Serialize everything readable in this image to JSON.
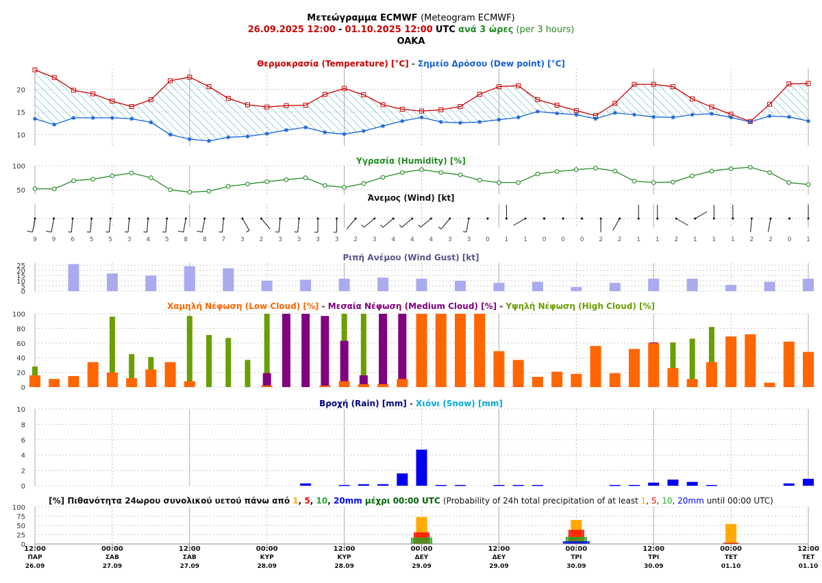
{
  "header": {
    "title_bold": "Μετεώγραμμα ECMWF",
    "title_normal": "(Meteogram ECMWF)",
    "period_from": "26.09.2025 12:00",
    "period_sep": "-",
    "period_to": "01.10.2025 12:00",
    "utc": "UTC",
    "step_bold": "ανά 3 ώρες",
    "step_normal": "(per 3 hours)",
    "station": "OAKA"
  },
  "colors": {
    "temperature": "#cc0000",
    "dew_point": "#1560d6",
    "humidity": "#228b22",
    "gust": "#aaaaee",
    "low_cloud": "#ff6600",
    "medium_cloud": "#800080",
    "high_cloud": "#6b9e00",
    "rain": "#0000ee",
    "snow": "#00aadd",
    "p1": "#ffaa00",
    "p5": "#ff0000",
    "p10": "#22aa22",
    "p20": "#0000ff"
  },
  "chart_data": [
    {
      "type": "line",
      "title_parts": [
        "Θερμοκρασία (Temperature) [°C]",
        " - ",
        "Σημείο Δρόσου (Dew point) [°C]"
      ],
      "series": [
        {
          "name": "Θερμοκρασία (Temperature) [°C]",
          "values": [
            24.3,
            22.6,
            19.8,
            19.0,
            17.4,
            16.2,
            17.7,
            21.9,
            22.7,
            20.6,
            18.0,
            16.6,
            16.1,
            16.4,
            16.5,
            18.9,
            20.2,
            18.8,
            16.6,
            15.6,
            15.2,
            15.5,
            16.2,
            18.9,
            20.6,
            20.8,
            17.7,
            16.5,
            15.3,
            14.2,
            16.9,
            21.1,
            21.1,
            20.6,
            17.9,
            16.1,
            14.5,
            12.9,
            16.7,
            21.2,
            21.3
          ]
        },
        {
          "name": "Σημείο Δρόσου (Dew point) [°C]",
          "values": [
            13.5,
            12.2,
            13.7,
            13.7,
            13.7,
            13.5,
            12.7,
            10.0,
            9.0,
            8.6,
            9.4,
            9.6,
            10.2,
            11.0,
            11.6,
            10.5,
            10.1,
            10.8,
            11.9,
            13.0,
            13.8,
            12.8,
            12.6,
            12.8,
            13.3,
            13.8,
            15.1,
            14.7,
            14.4,
            13.5,
            14.8,
            14.4,
            13.9,
            13.8,
            14.4,
            14.6,
            13.8,
            12.8,
            14.1,
            13.9,
            13.0
          ]
        }
      ],
      "yticks": [
        10,
        15,
        20
      ]
    },
    {
      "type": "line",
      "title": "Υγρασία (Humidity) [%]",
      "values": [
        52,
        52,
        69,
        72,
        79,
        85,
        75,
        50,
        45,
        47,
        57,
        62,
        67,
        71,
        75,
        59,
        55,
        63,
        76,
        86,
        92,
        86,
        81,
        70,
        65,
        65,
        83,
        88,
        92,
        95,
        89,
        68,
        65,
        66,
        79,
        89,
        94,
        97,
        86,
        65,
        61
      ],
      "yticks": [
        50,
        100
      ]
    },
    {
      "type": "table",
      "title": "Άνεμος (Wind) [kt]",
      "speeds": [
        9,
        9,
        6,
        5,
        5,
        3,
        4,
        5,
        8,
        8,
        7,
        3,
        2,
        3,
        3,
        3,
        3,
        2,
        3,
        4,
        4,
        4,
        3,
        3,
        0,
        1,
        1,
        0,
        0,
        0,
        2,
        2,
        1,
        1,
        2,
        1,
        1,
        1,
        2,
        2,
        0,
        1
      ],
      "directions_deg": [
        190,
        190,
        185,
        185,
        185,
        185,
        185,
        185,
        190,
        190,
        185,
        150,
        140,
        185,
        185,
        180,
        180,
        220,
        230,
        230,
        230,
        230,
        220,
        190,
        0,
        0,
        240,
        0,
        0,
        0,
        180,
        210,
        0,
        0,
        120,
        60,
        0,
        0,
        185,
        190,
        0,
        0
      ]
    },
    {
      "type": "bar",
      "title": "Ριπή Ανέμου (Wind Gust) [kt]",
      "categories_index": [
        2,
        4,
        6,
        8,
        10,
        12,
        14,
        16,
        18,
        20,
        22,
        24,
        26,
        28,
        30,
        32,
        34,
        36,
        38,
        40
      ],
      "values": [
        26,
        17,
        15,
        24,
        22,
        10,
        11,
        12,
        13,
        12,
        10,
        8,
        9,
        4,
        8,
        12,
        12,
        6,
        9,
        12
      ],
      "yticks": [
        0,
        5,
        10,
        15,
        20,
        25
      ]
    },
    {
      "type": "bar",
      "title_parts": [
        "Χαμηλή Νέφωση (Low Cloud) [%]",
        " - ",
        "Μεσαία Νέφωση (Medium Cloud) [%]",
        " - ",
        "Υψηλή Νέφωση (High Cloud) [%]"
      ],
      "series": [
        {
          "name": "Χαμηλή Νέφωση (Low Cloud) [%]",
          "values": [
            16,
            11,
            15,
            34,
            20,
            12,
            24,
            34,
            8,
            0,
            0,
            0,
            2,
            0,
            0,
            2,
            8,
            4,
            4,
            11,
            100,
            100,
            100,
            100,
            49,
            37,
            14,
            21,
            18,
            56,
            19,
            52,
            60,
            26,
            11,
            34,
            69,
            72,
            6,
            62,
            48
          ]
        },
        {
          "name": "Μεσαία Νέφωση (Medium Cloud) [%]",
          "values": [
            0,
            0,
            0,
            0,
            0,
            0,
            0,
            0,
            0,
            0,
            0,
            0,
            19,
            100,
            100,
            97,
            63,
            16,
            100,
            100,
            0,
            0,
            0,
            0,
            0,
            0,
            0,
            0,
            0,
            0,
            0,
            0,
            61,
            0,
            0,
            0,
            0,
            0,
            0,
            0,
            0
          ]
        },
        {
          "name": "Υψηλή Νέφωση (High Cloud) [%]",
          "values": [
            28,
            0,
            0,
            0,
            96,
            45,
            41,
            0,
            97,
            71,
            67,
            37,
            100,
            0,
            0,
            0,
            100,
            100,
            0,
            0,
            0,
            0,
            0,
            0,
            0,
            0,
            0,
            0,
            0,
            0,
            0,
            0,
            0,
            61,
            66,
            82,
            0,
            0,
            0,
            0,
            0
          ]
        }
      ],
      "yticks": [
        0,
        20,
        40,
        60,
        80,
        100
      ]
    },
    {
      "type": "bar",
      "title_parts": [
        "Βροχή (Rain) [mm]",
        " - ",
        "Χιόνι (Snow) [mm]"
      ],
      "rain_values": [
        0,
        0,
        0,
        0,
        0,
        0,
        0,
        0,
        0,
        0,
        0,
        0,
        0,
        0,
        0.3,
        0,
        0.1,
        0.2,
        0.2,
        1.6,
        4.7,
        0.1,
        0.1,
        0,
        0.1,
        0.1,
        0.1,
        0,
        0,
        0,
        0.1,
        0.1,
        0.4,
        0.8,
        0.5,
        0.1,
        0,
        0,
        0,
        0.3,
        0.9
      ],
      "snow_values": [],
      "yticks": [
        0,
        2,
        4,
        6,
        8,
        10
      ]
    },
    {
      "type": "bar",
      "title_bold_prefix": "[%] Πιθανότητα 24ωρου συνολικού υετού πάνω από",
      "thresholds": [
        "1",
        "5",
        "10",
        "20mm"
      ],
      "title_bold_suffix": "μέχρι 00:00 UTC",
      "title_normal_prefix": "(Probability of 24h total precipitation of at least",
      "title_normal_suffix": "until 00:00 UTC)",
      "categories": [
        "29.09",
        "30.09",
        "01.10"
      ],
      "series": [
        {
          "name": "1",
          "values": [
            73,
            65,
            54
          ]
        },
        {
          "name": "5",
          "values": [
            30,
            37,
            2
          ]
        },
        {
          "name": "10",
          "values": [
            16,
            18,
            0
          ]
        },
        {
          "name": "20mm",
          "values": [
            0,
            6,
            0
          ]
        }
      ],
      "yticks": [
        0,
        25,
        50,
        75,
        100
      ]
    }
  ],
  "time_axis": {
    "labels": [
      {
        "time": "12:00",
        "day": "ΠΑΡ",
        "date": "26.09"
      },
      {
        "time": "00:00",
        "day": "ΣΑΒ",
        "date": "27.09"
      },
      {
        "time": "12:00",
        "day": "ΣΑΒ",
        "date": "27.09"
      },
      {
        "time": "00:00",
        "day": "ΚΥΡ",
        "date": "28.09"
      },
      {
        "time": "12:00",
        "day": "ΚΥΡ",
        "date": "28.09"
      },
      {
        "time": "00:00",
        "day": "ΔΕΥ",
        "date": "29.09"
      },
      {
        "time": "12:00",
        "day": "ΔΕΥ",
        "date": "29.09"
      },
      {
        "time": "00:00",
        "day": "ΤΡΙ",
        "date": "30.09"
      },
      {
        "time": "12:00",
        "day": "ΤΡΙ",
        "date": "30.09"
      },
      {
        "time": "00:00",
        "day": "ΤΕΤ",
        "date": "01.10"
      },
      {
        "time": "12:00",
        "day": "ΤΕΤ",
        "date": "01.10"
      }
    ]
  }
}
